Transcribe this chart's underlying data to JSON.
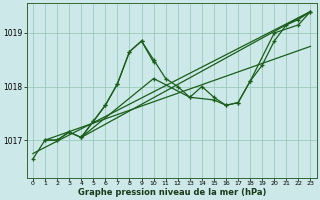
{
  "xlabel": "Graphe pression niveau de la mer (hPa)",
  "bg_color": "#cce8e8",
  "grid_color": "#99ccbb",
  "line_color": "#1a5e1a",
  "xlim": [
    -0.5,
    23.5
  ],
  "ylim": [
    1016.3,
    1019.55
  ],
  "yticks": [
    1017,
    1018,
    1019
  ],
  "xticks": [
    0,
    1,
    2,
    3,
    4,
    5,
    6,
    7,
    8,
    9,
    10,
    11,
    12,
    13,
    14,
    15,
    16,
    17,
    18,
    19,
    20,
    21,
    22,
    23
  ],
  "series1_x": [
    0,
    1,
    2,
    3,
    4,
    5,
    6,
    7,
    8,
    9,
    10,
    11,
    12,
    13,
    14,
    15,
    16,
    17,
    18,
    19,
    20,
    21,
    22,
    23
  ],
  "series1_y": [
    1016.65,
    1017.0,
    1017.0,
    1017.15,
    1017.05,
    1017.35,
    1017.65,
    1018.05,
    1018.65,
    1018.85,
    1018.5,
    1018.15,
    1018.0,
    1017.8,
    1018.0,
    1017.8,
    1017.65,
    1017.7,
    1018.1,
    1018.4,
    1018.85,
    1019.15,
    1019.25,
    1019.4
  ],
  "series2_x": [
    1,
    2,
    3,
    4,
    5,
    6,
    7,
    8,
    9,
    10
  ],
  "series2_y": [
    1017.0,
    1017.0,
    1017.15,
    1017.05,
    1017.35,
    1017.65,
    1018.05,
    1018.65,
    1018.85,
    1018.45
  ],
  "series3_x": [
    4,
    10,
    13,
    15,
    16,
    17,
    18,
    20,
    22,
    23
  ],
  "series3_y": [
    1017.05,
    1018.15,
    1017.8,
    1017.75,
    1017.65,
    1017.7,
    1018.1,
    1019.0,
    1019.15,
    1019.4
  ],
  "line4_x": [
    0,
    23
  ],
  "line4_y": [
    1016.75,
    1019.4
  ],
  "line5_x": [
    4,
    23
  ],
  "line5_y": [
    1017.05,
    1019.4
  ],
  "line6_x": [
    1,
    23
  ],
  "line6_y": [
    1017.0,
    1018.75
  ]
}
